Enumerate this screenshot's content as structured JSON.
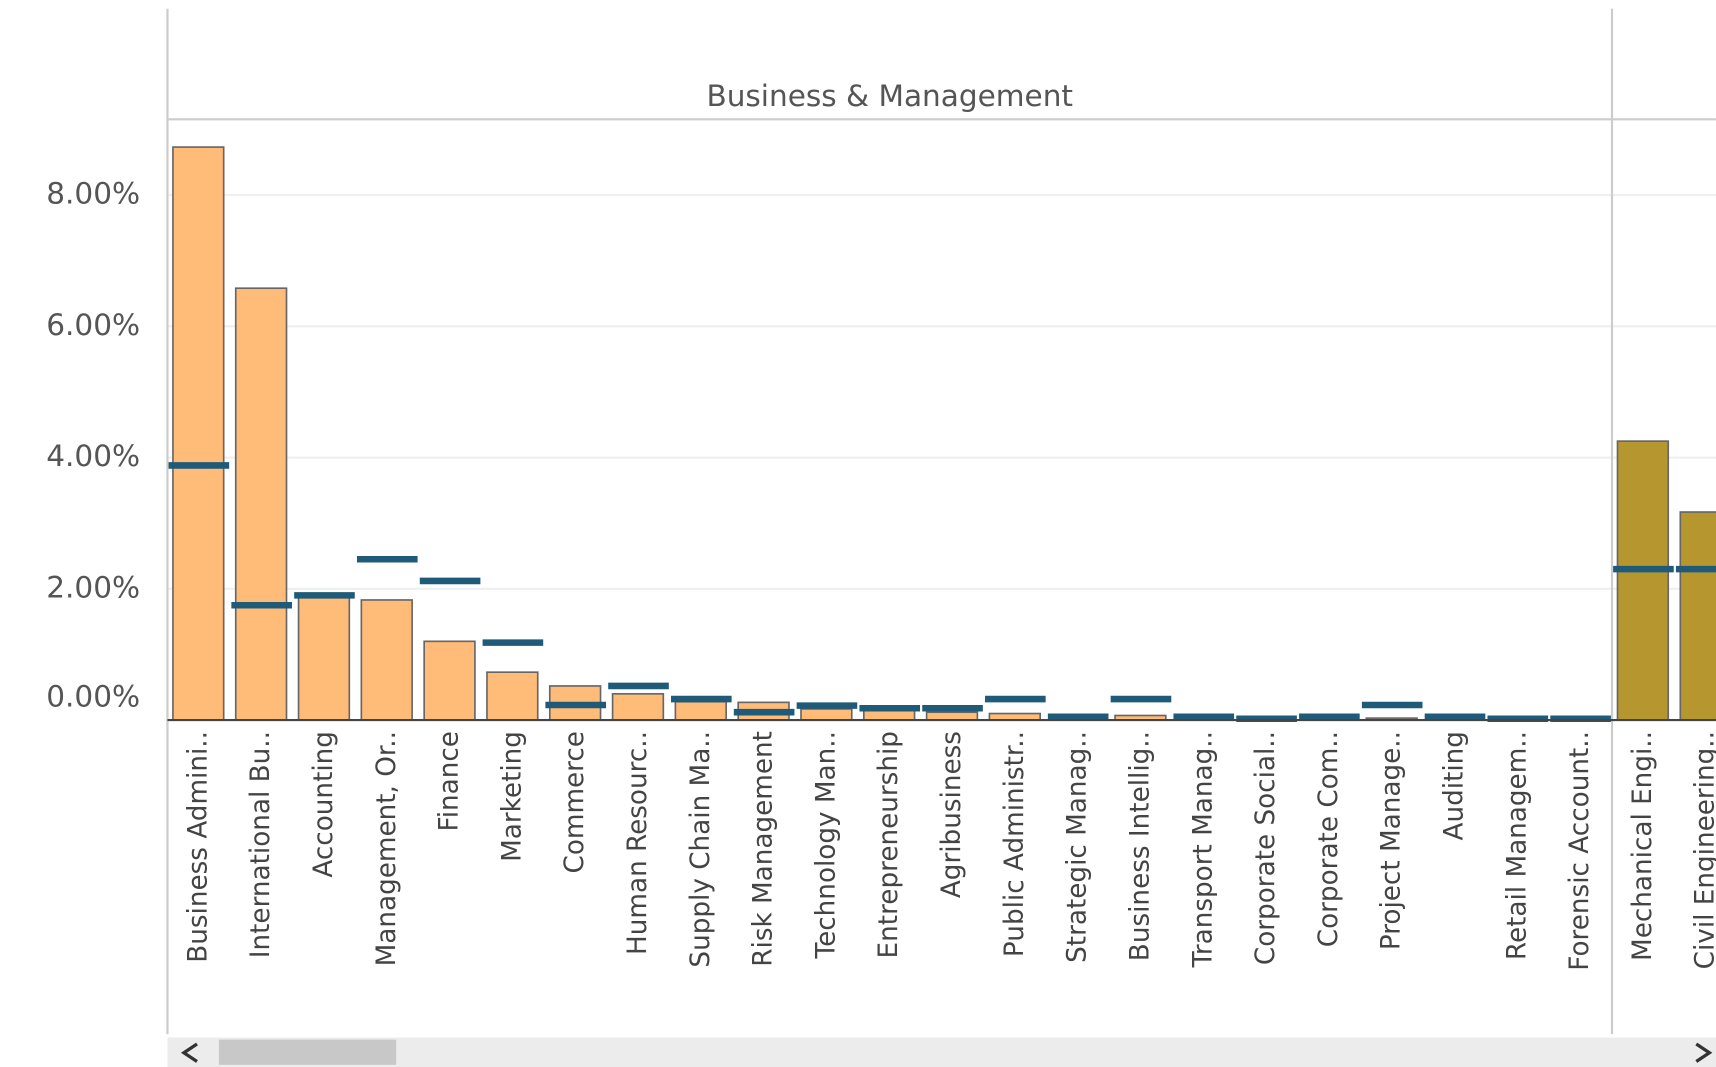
{
  "chart_data": [
    {
      "type": "bar",
      "title": "Business & Management",
      "categories": [
        "Business Admini..",
        "International Bu..",
        "Accounting",
        "Management, Or..",
        "Finance",
        "Marketing",
        "Commerce",
        "Human Resourc..",
        "Supply Chain Ma..",
        "Risk Management",
        "Technology Man..",
        "Entrepreneurship",
        "Agribusiness",
        "Public Administr..",
        "Strategic Manag..",
        "Business Intellig..",
        "Transport Manag..",
        "Corporate Social..",
        "Corporate Com..",
        "Project Manage..",
        "Auditing",
        "Retail Managem..",
        "Forensic Account.."
      ],
      "series": [
        {
          "color": "#ffbb78",
          "values": [
            8.73,
            6.58,
            1.92,
            1.83,
            1.2,
            0.73,
            0.52,
            0.4,
            0.28,
            0.27,
            0.17,
            0.15,
            0.12,
            0.1,
            0.07,
            0.07,
            0.03,
            0.02,
            0.02,
            0.03,
            0.02,
            0.01,
            0.01
          ]
        },
        {
          "type": "marker",
          "color": "#1f5b78",
          "values": [
            3.88,
            1.75,
            1.9,
            2.45,
            2.12,
            1.18,
            0.23,
            0.52,
            0.32,
            0.12,
            0.22,
            0.18,
            0.18,
            0.32,
            0.05,
            0.32,
            0.05,
            0.02,
            0.05,
            0.23,
            0.05,
            0.02,
            0.02
          ]
        }
      ],
      "ylim": [
        0,
        8.97
      ],
      "yticks": [
        {
          "value": 0,
          "label": "0.00%"
        },
        {
          "value": 2,
          "label": "2.00%"
        },
        {
          "value": 4,
          "label": "4.00%"
        },
        {
          "value": 6,
          "label": "6.00%"
        },
        {
          "value": 8,
          "label": "8.00%"
        }
      ],
      "grid": true
    },
    {
      "type": "bar",
      "categories": [
        "Mechanical Engi..",
        "Civil Engineering.."
      ],
      "series": [
        {
          "color": "#b5962f",
          "values": [
            4.25,
            3.17
          ]
        },
        {
          "type": "marker",
          "color": "#1f5b78",
          "values": [
            2.3,
            2.3
          ]
        }
      ],
      "ylim": [
        0,
        8.97
      ],
      "grid": true
    }
  ]
}
